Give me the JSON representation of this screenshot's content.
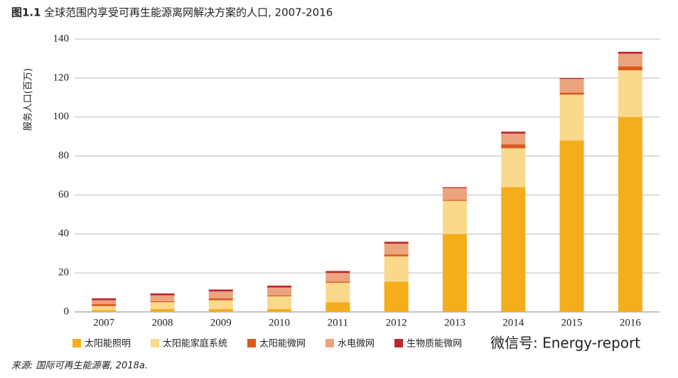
{
  "chart_data": {
    "type": "stacked-bar",
    "figure_label": "图1.1",
    "title": "全球范围内享受可再生能源离网解决方案的人口, 2007-2016",
    "y_label": "服务人口(百万)",
    "source": "来源: 国际可再生能源署, 2018a.",
    "watermark": "微信号: Energy-report",
    "categories": [
      "2007",
      "2008",
      "2009",
      "2010",
      "2011",
      "2012",
      "2013",
      "2014",
      "2015",
      "2016"
    ],
    "series": [
      {
        "name": "太阳能照明",
        "color": "#f5ad1b",
        "values": [
          1,
          1.5,
          1.5,
          1.5,
          5,
          15.5,
          40,
          64,
          88,
          100
        ]
      },
      {
        "name": "太阳能家庭系统",
        "color": "#fbd98c",
        "values": [
          2,
          3.5,
          4.5,
          6.5,
          10,
          13,
          17,
          20,
          23.5,
          24
        ]
      },
      {
        "name": "太阳能微网",
        "color": "#d8581f",
        "values": [
          1,
          0.5,
          1,
          0.5,
          0.5,
          1,
          0.5,
          2,
          1,
          2
        ]
      },
      {
        "name": "水电微网",
        "color": "#eba47d",
        "values": [
          2,
          3,
          3.5,
          4,
          4.5,
          5.5,
          6,
          5.5,
          7,
          6.5
        ]
      },
      {
        "name": "生物质能微网",
        "color": "#c0272d",
        "values": [
          1,
          1,
          1,
          1,
          1,
          1,
          0.5,
          1,
          0.5,
          1
        ]
      }
    ],
    "ylim": [
      0,
      140
    ],
    "yticks": [
      0,
      20,
      40,
      60,
      80,
      100,
      120,
      140
    ],
    "grid": true
  }
}
